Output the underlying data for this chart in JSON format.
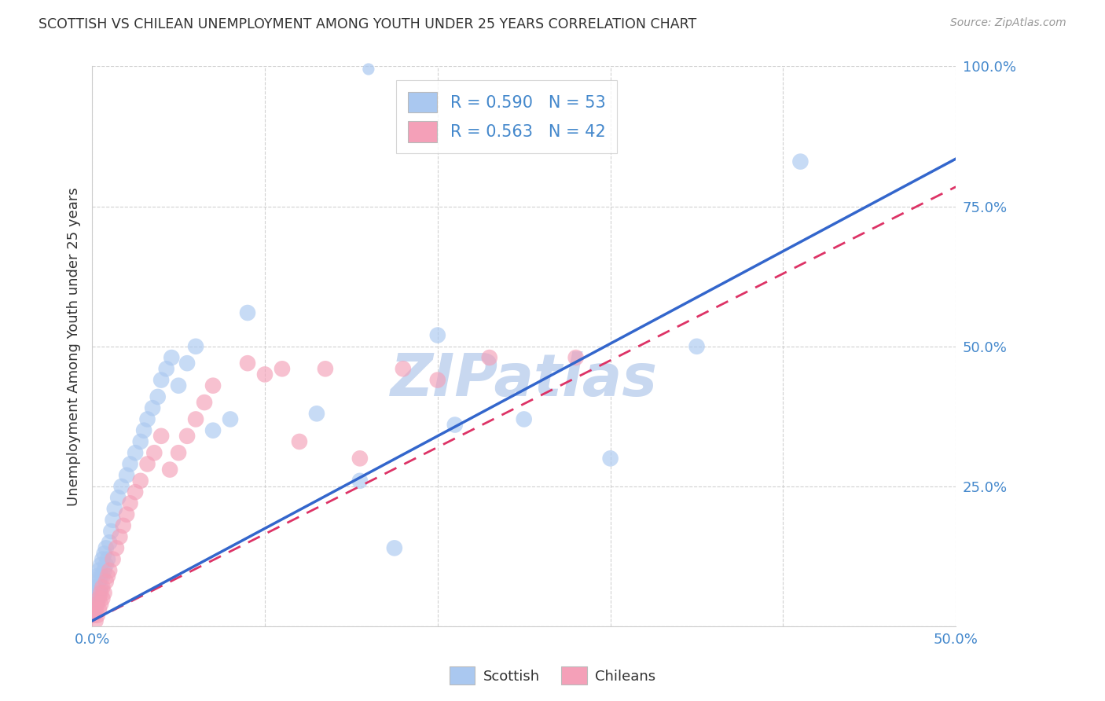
{
  "title": "SCOTTISH VS CHILEAN UNEMPLOYMENT AMONG YOUTH UNDER 25 YEARS CORRELATION CHART",
  "source": "Source: ZipAtlas.com",
  "ylabel": "Unemployment Among Youth under 25 years",
  "xlim": [
    0.0,
    0.5
  ],
  "ylim": [
    0.0,
    1.0
  ],
  "xticks": [
    0.0,
    0.1,
    0.2,
    0.3,
    0.4,
    0.5
  ],
  "yticks": [
    0.0,
    0.25,
    0.5,
    0.75,
    1.0
  ],
  "xticklabels": [
    "0.0%",
    "",
    "",
    "",
    "",
    "50.0%"
  ],
  "yticklabels": [
    "",
    "25.0%",
    "50.0%",
    "75.0%",
    "100.0%"
  ],
  "scottish_R": 0.59,
  "scottish_N": 53,
  "chilean_R": 0.563,
  "chilean_N": 42,
  "scottish_color": "#aac8f0",
  "chilean_color": "#f4a0b8",
  "scottish_line_color": "#3366cc",
  "chilean_line_color": "#dd3366",
  "watermark_color": "#c8d8f0",
  "background_color": "#ffffff",
  "grid_color": "#cccccc",
  "title_color": "#333333",
  "axis_color": "#4488cc",
  "scottish_x": [
    0.001,
    0.001,
    0.002,
    0.002,
    0.002,
    0.003,
    0.003,
    0.003,
    0.004,
    0.004,
    0.004,
    0.005,
    0.005,
    0.005,
    0.006,
    0.006,
    0.007,
    0.007,
    0.008,
    0.008,
    0.009,
    0.01,
    0.011,
    0.012,
    0.013,
    0.015,
    0.017,
    0.02,
    0.022,
    0.025,
    0.028,
    0.03,
    0.032,
    0.035,
    0.038,
    0.04,
    0.043,
    0.046,
    0.05,
    0.055,
    0.06,
    0.07,
    0.08,
    0.09,
    0.13,
    0.155,
    0.175,
    0.2,
    0.21,
    0.25,
    0.3,
    0.35,
    0.41
  ],
  "scottish_y": [
    0.03,
    0.05,
    0.04,
    0.06,
    0.07,
    0.05,
    0.07,
    0.09,
    0.06,
    0.08,
    0.1,
    0.07,
    0.09,
    0.11,
    0.09,
    0.12,
    0.1,
    0.13,
    0.11,
    0.14,
    0.12,
    0.15,
    0.17,
    0.19,
    0.21,
    0.23,
    0.25,
    0.27,
    0.29,
    0.31,
    0.33,
    0.35,
    0.37,
    0.39,
    0.41,
    0.44,
    0.46,
    0.48,
    0.43,
    0.47,
    0.5,
    0.35,
    0.37,
    0.56,
    0.38,
    0.26,
    0.14,
    0.52,
    0.36,
    0.37,
    0.3,
    0.5,
    0.83
  ],
  "chilean_x": [
    0.001,
    0.002,
    0.002,
    0.003,
    0.003,
    0.004,
    0.004,
    0.005,
    0.005,
    0.006,
    0.006,
    0.007,
    0.008,
    0.009,
    0.01,
    0.012,
    0.014,
    0.016,
    0.018,
    0.02,
    0.022,
    0.025,
    0.028,
    0.032,
    0.036,
    0.04,
    0.045,
    0.05,
    0.055,
    0.06,
    0.065,
    0.07,
    0.09,
    0.1,
    0.11,
    0.12,
    0.135,
    0.155,
    0.18,
    0.2,
    0.23,
    0.28
  ],
  "chilean_y": [
    0.02,
    0.01,
    0.03,
    0.02,
    0.04,
    0.03,
    0.05,
    0.04,
    0.06,
    0.05,
    0.07,
    0.06,
    0.08,
    0.09,
    0.1,
    0.12,
    0.14,
    0.16,
    0.18,
    0.2,
    0.22,
    0.24,
    0.26,
    0.29,
    0.31,
    0.34,
    0.28,
    0.31,
    0.34,
    0.37,
    0.4,
    0.43,
    0.47,
    0.45,
    0.46,
    0.33,
    0.46,
    0.3,
    0.46,
    0.44,
    0.48,
    0.48
  ],
  "scottish_line_slope": 1.65,
  "scottish_line_intercept": 0.01,
  "chilean_line_slope": 1.55,
  "chilean_line_intercept": 0.01
}
